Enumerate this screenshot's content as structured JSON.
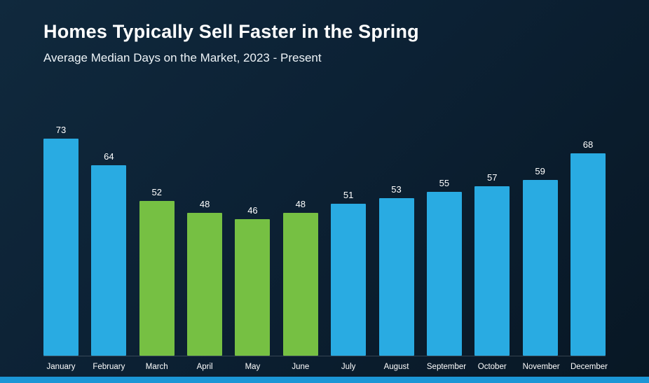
{
  "header": {
    "title": "Homes Typically Sell Faster in the Spring",
    "subtitle": "Average Median Days on the Market, 2023 - Present"
  },
  "chart_data": {
    "type": "bar",
    "title": "Homes Typically Sell Faster in the Spring",
    "subtitle": "Average Median Days on the Market, 2023 - Present",
    "categories": [
      "January",
      "February",
      "March",
      "April",
      "May",
      "June",
      "July",
      "August",
      "September",
      "October",
      "November",
      "December"
    ],
    "values": [
      73,
      64,
      52,
      48,
      46,
      48,
      51,
      53,
      55,
      57,
      59,
      68
    ],
    "highlight_categories": [
      "March",
      "April",
      "May",
      "June"
    ],
    "xlabel": "",
    "ylabel": "",
    "ylim": [
      0,
      73
    ],
    "grid": false,
    "legend": "none",
    "data_labels": true
  },
  "colors": {
    "bar_default": "#29ABE2",
    "bar_highlight": "#76C043",
    "footer_bar": "#1B96D6",
    "background": "#0c2134",
    "text": "#FFFFFF"
  }
}
